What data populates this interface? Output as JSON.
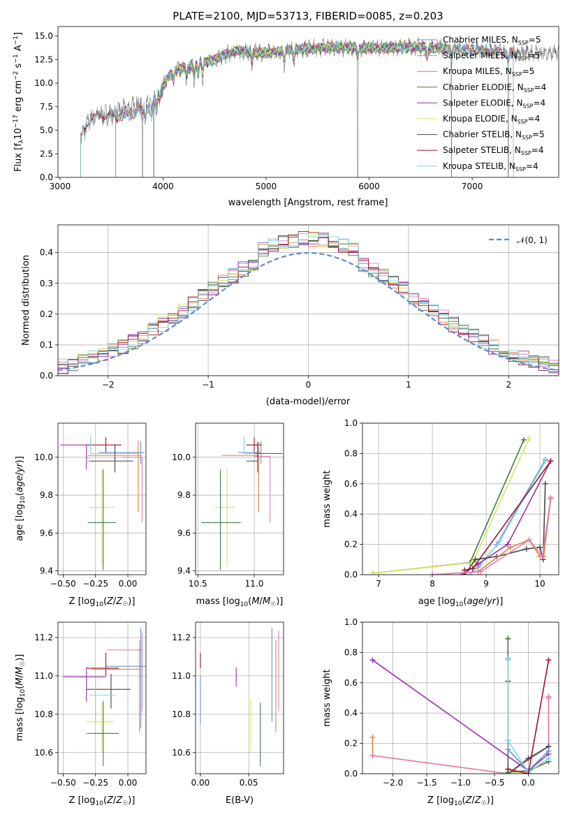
{
  "colors": {
    "Chabrier MILES": "#6a8fd6",
    "Salpeter MILES": "#e07fb0",
    "Kroupa MILES": "#e0803a",
    "Chabrier ELODIE": "#3f7a4a",
    "Salpeter ELODIE": "#9a2fae",
    "Kroupa ELODIE": "#d9e65a",
    "Chabrier STELIB": "#444444",
    "Salpeter STELIB": "#a0102a",
    "Kroupa STELIB": "#7fd8d8",
    "normal": "#5b8ad6",
    "grid": "#b0b0b0"
  },
  "chart_data": [
    {
      "id": "spectrum",
      "type": "line",
      "title": "PLATE=2100, MJD=53713, FIBERID=0085, z=0.203",
      "xlabel": "wavelength [Angstrom, rest frame]",
      "ylabel_parts": [
        "Flux [f",
        "λ",
        "10",
        "−17",
        " erg cm",
        "−2",
        " s",
        "−1",
        " A",
        "−1",
        "]"
      ],
      "xlim": [
        2980,
        7840
      ],
      "ylim": [
        0,
        16
      ],
      "xticks": [
        3000,
        4000,
        5000,
        6000,
        7000
      ],
      "yticks": [
        0.0,
        2.5,
        5.0,
        7.5,
        10.0,
        12.5,
        15.0
      ],
      "grid": false,
      "legend_position": "right",
      "legend": [
        {
          "name": "Chabrier MILES",
          "nssp": "5"
        },
        {
          "name": "Salpeter MILES",
          "nssp": "5"
        },
        {
          "name": "Kroupa MILES",
          "nssp": "5"
        },
        {
          "name": "Chabrier ELODIE",
          "nssp": "4"
        },
        {
          "name": "Salpeter ELODIE",
          "nssp": "4"
        },
        {
          "name": "Kroupa ELODIE",
          "nssp": "4"
        },
        {
          "name": "Chabrier STELIB",
          "nssp": "5"
        },
        {
          "name": "Salpeter STELIB",
          "nssp": "4"
        },
        {
          "name": "Kroupa STELIB",
          "nssp": "4"
        }
      ],
      "legend_nssp_label": "N",
      "legend_nssp_sub": "SSP",
      "model_start": {
        "Chabrier MILES": 3540,
        "Salpeter MILES": 3540,
        "Kroupa MILES": 3540,
        "Chabrier ELODIE": 3910,
        "Salpeter ELODIE": 3910,
        "Kroupa ELODIE": 3910,
        "Chabrier STELIB": 3200,
        "Salpeter STELIB": 3200,
        "Kroupa STELIB": 3200
      },
      "model_end": {
        "Chabrier MILES": 7400,
        "Salpeter MILES": 7400,
        "Kroupa MILES": 7400,
        "Chabrier ELODIE": 6800,
        "Salpeter ELODIE": 6800,
        "Kroupa ELODIE": 6800,
        "Chabrier STELIB": 7400,
        "Salpeter STELIB": 7400,
        "Kroupa STELIB": 7400
      },
      "continuum_wavelength": [
        3200,
        3300,
        3400,
        3500,
        3650,
        3800,
        3900,
        4000,
        4100,
        4300,
        4500,
        4700,
        5000,
        5300,
        5600,
        6000,
        6400,
        6800,
        7200,
        7400
      ],
      "continuum_flux": [
        4.2,
        6.3,
        6.6,
        6.7,
        7.2,
        7.8,
        8.2,
        9.8,
        11.3,
        11.9,
        12.5,
        13.4,
        13.2,
        13.6,
        13.8,
        13.7,
        13.8,
        13.7,
        13.4,
        13.2
      ],
      "absorption_lines": [
        3800,
        3830,
        3889,
        3934,
        3969,
        4102,
        4227,
        4304,
        4340,
        4384,
        4861,
        5175,
        5270,
        5890,
        6563,
        6800,
        7350
      ],
      "series_order": [
        "Salpeter STELIB",
        "Kroupa MILES",
        "Chabrier MILES",
        "Salpeter ELODIE",
        "Kroupa ELODIE",
        "Chabrier ELODIE",
        "Kroupa STELIB"
      ]
    },
    {
      "id": "residuals",
      "type": "line",
      "xlabel": "(data-model)/error",
      "ylabel": "Normed distribution",
      "xlim": [
        -2.5,
        2.5
      ],
      "ylim": [
        0,
        0.49
      ],
      "xticks": [
        -2,
        -1,
        0,
        1,
        2
      ],
      "yticks": [
        0.0,
        0.1,
        0.2,
        0.3,
        0.4
      ],
      "grid": true,
      "legend_position": "top-right",
      "normal_label": "𝒩(0, 1)",
      "bins_start": -2.5,
      "bin_width": 0.1,
      "n_bins": 50
    },
    {
      "id": "age-vs-Z",
      "type": "scatter",
      "xlabel": "Z [log10(Z/Z☉)]",
      "ylabel": "age [log10(age/yr)]",
      "xlim": [
        -0.54,
        0.14
      ],
      "ylim": [
        9.38,
        10.18
      ],
      "xticks": [
        -0.5,
        -0.25,
        0.0
      ],
      "yticks": [
        9.4,
        9.6,
        9.8,
        10.0
      ],
      "grid": true,
      "points": [
        {
          "model": "Salpeter ELODIE",
          "x": -0.32,
          "xerr": [
            0.2,
            0.0
          ],
          "y": 10.065,
          "yerr": [
            0.13,
            0.0
          ]
        },
        {
          "model": "Salpeter STELIB",
          "x": -0.17,
          "xerr": [
            0.15,
            0.12
          ],
          "y": 10.065,
          "yerr": [
            0.04,
            0.04
          ]
        },
        {
          "model": "Chabrier MILES",
          "x": 0.1,
          "xerr": [
            0.32,
            0.03
          ],
          "y": 10.025,
          "yerr": [
            0.06,
            0.06
          ]
        },
        {
          "model": "Kroupa STELIB",
          "x": -0.29,
          "xerr": [
            0.0,
            0.38
          ],
          "y": 10.02,
          "yerr": [
            0.0,
            0.09
          ]
        },
        {
          "model": "Kroupa MILES",
          "x": 0.08,
          "xerr": [
            0.39,
            0.02
          ],
          "y": 10.01,
          "yerr": [
            0.3,
            0.08
          ]
        },
        {
          "model": "Chabrier STELIB",
          "x": -0.1,
          "xerr": [
            0.2,
            0.14
          ],
          "y": 9.98,
          "yerr": [
            0.06,
            0.09
          ]
        },
        {
          "model": "Salpeter MILES",
          "x": 0.11,
          "xerr": [
            0.15,
            0.0
          ],
          "y": 10.0,
          "yerr": [
            0.34,
            0.0
          ]
        },
        {
          "model": "Kroupa ELODIE",
          "x": -0.2,
          "xerr": [
            0.1,
            0.1
          ],
          "y": 9.735,
          "yerr": [
            0.31,
            0.2
          ]
        },
        {
          "model": "Chabrier ELODIE",
          "x": -0.19,
          "xerr": [
            0.12,
            0.1
          ],
          "y": 9.655,
          "yerr": [
            0.25,
            0.28
          ]
        }
      ]
    },
    {
      "id": "age-vs-mass",
      "type": "scatter",
      "xlabel": "mass [log10(M/M☉)]",
      "ylabel": "",
      "xlim": [
        10.48,
        11.26
      ],
      "ylim": [
        9.38,
        10.18
      ],
      "xticks": [
        10.5,
        11.0
      ],
      "yticks": [
        9.4,
        9.6,
        9.8,
        10.0
      ],
      "grid": true,
      "points": [
        {
          "model": "Salpeter STELIB",
          "x": 11.0,
          "xerr": [
            0.07,
            0.07
          ],
          "y": 10.065,
          "yerr": [
            0.04,
            0.04
          ]
        },
        {
          "model": "Chabrier MILES",
          "x": 11.06,
          "xerr": [
            0.2,
            0.0
          ],
          "y": 10.025,
          "yerr": [
            0.06,
            0.06
          ]
        },
        {
          "model": "Kroupa STELIB",
          "x": 10.91,
          "xerr": [
            0.0,
            0.14
          ],
          "y": 10.02,
          "yerr": [
            0.0,
            0.09
          ]
        },
        {
          "model": "Salpeter ELODIE",
          "x": 11.0,
          "xerr": [
            0.0,
            0.25
          ],
          "y": 10.02,
          "yerr": [
            0.0,
            0.0
          ]
        },
        {
          "model": "Kroupa MILES",
          "x": 11.04,
          "xerr": [
            0.33,
            0.0
          ],
          "y": 10.01,
          "yerr": [
            0.3,
            0.07
          ]
        },
        {
          "model": "Salpeter MILES",
          "x": 11.14,
          "xerr": [
            0.14,
            0.0
          ],
          "y": 10.005,
          "yerr": [
            0.35,
            0.0
          ]
        },
        {
          "model": "Chabrier STELIB",
          "x": 11.03,
          "xerr": [
            0.1,
            0.0
          ],
          "y": 9.98,
          "yerr": [
            0.06,
            0.1
          ]
        },
        {
          "model": "Kroupa ELODIE",
          "x": 10.76,
          "xerr": [
            0.11,
            0.07
          ],
          "y": 9.735,
          "yerr": [
            0.31,
            0.2
          ]
        },
        {
          "model": "Chabrier ELODIE",
          "x": 10.7,
          "xerr": [
            0.17,
            0.18
          ],
          "y": 9.655,
          "yerr": [
            0.25,
            0.28
          ]
        }
      ]
    },
    {
      "id": "weight-vs-age",
      "type": "line",
      "xlabel": "age [log10(age/yr)]",
      "ylabel": "mass weight",
      "xlim": [
        6.7,
        10.35
      ],
      "ylim": [
        0,
        1
      ],
      "xticks": [
        7,
        8,
        9,
        10
      ],
      "yticks": [
        0.0,
        0.2,
        0.4,
        0.6,
        0.8,
        1.0
      ],
      "grid": true,
      "series": [
        {
          "model": "Chabrier ELODIE",
          "x": [
            6.9,
            8.7,
            9.7
          ],
          "y": [
            0.01,
            0.08,
            0.89
          ]
        },
        {
          "model": "Kroupa ELODIE",
          "x": [
            6.9,
            8.75,
            9.8
          ],
          "y": [
            0.01,
            0.08,
            0.9
          ]
        },
        {
          "model": "Chabrier MILES",
          "x": [
            8.7,
            8.85,
            9.2,
            10.1
          ],
          "y": [
            0.0,
            0.05,
            0.2,
            0.76
          ]
        },
        {
          "model": "Kroupa STELIB",
          "x": [
            8.7,
            8.9,
            9.25,
            10.1
          ],
          "y": [
            0.0,
            0.07,
            0.22,
            0.75
          ]
        },
        {
          "model": "Salpeter ELODIE",
          "x": [
            8.55,
            8.85,
            9.4,
            10.2
          ],
          "y": [
            0.0,
            0.07,
            0.2,
            0.75
          ]
        },
        {
          "model": "Salpeter STELIB",
          "x": [
            8.6,
            8.75,
            10.2
          ],
          "y": [
            0.03,
            0.04,
            0.75
          ]
        },
        {
          "model": "Chabrier STELIB",
          "x": [
            8.6,
            8.8,
            9.2,
            9.75,
            10.0,
            10.06,
            10.1
          ],
          "y": [
            0.0,
            0.1,
            0.12,
            0.17,
            0.18,
            0.1,
            0.6
          ]
        },
        {
          "model": "Kroupa MILES",
          "x": [
            8.0,
            8.85,
            9.45,
            9.8,
            10.0,
            10.07,
            10.2
          ],
          "y": [
            0.0,
            0.02,
            0.18,
            0.23,
            0.12,
            0.12,
            0.5
          ]
        },
        {
          "model": "Salpeter MILES",
          "x": [
            8.0,
            8.9,
            9.8,
            10.05,
            10.2
          ],
          "y": [
            0.0,
            0.02,
            0.23,
            0.12,
            0.51
          ]
        }
      ]
    },
    {
      "id": "mass-vs-Z",
      "type": "scatter",
      "xlabel": "Z [log10(Z/Z☉)]",
      "ylabel": "mass [log10(M/M☉)]",
      "xlim": [
        -0.54,
        0.14
      ],
      "ylim": [
        10.49,
        11.28
      ],
      "xticks": [
        -0.5,
        -0.25,
        0.0
      ],
      "yticks": [
        10.6,
        10.8,
        11.0,
        11.2
      ],
      "grid": true,
      "points": [
        {
          "model": "Salpeter MILES",
          "x": 0.11,
          "xerr": [
            0.27,
            0.0
          ],
          "y": 11.135,
          "yerr": [
            0.32,
            0.09
          ]
        },
        {
          "model": "Chabrier MILES",
          "x": 0.1,
          "xerr": [
            0.27,
            0.04
          ],
          "y": 11.05,
          "yerr": [
            0.32,
            0.2
          ]
        },
        {
          "model": "Salpeter STELIB",
          "x": -0.17,
          "xerr": [
            0.15,
            0.1
          ],
          "y": 11.04,
          "yerr": [
            0.04,
            0.08
          ]
        },
        {
          "model": "Kroupa MILES",
          "x": 0.09,
          "xerr": [
            0.37,
            0.0
          ],
          "y": 11.035,
          "yerr": [
            0.33,
            0.15
          ]
        },
        {
          "model": "Salpeter ELODIE",
          "x": -0.32,
          "xerr": [
            0.18,
            0.15
          ],
          "y": 10.995,
          "yerr": [
            0.13,
            0.05
          ]
        },
        {
          "model": "Chabrier STELIB",
          "x": -0.13,
          "xerr": [
            0.19,
            0.15
          ],
          "y": 10.93,
          "yerr": [
            0.1,
            0.08
          ]
        },
        {
          "model": "Kroupa STELIB",
          "x": -0.25,
          "xerr": [
            0.05,
            0.16
          ],
          "y": 10.9,
          "yerr": [
            0.15,
            0.09
          ]
        },
        {
          "model": "Kroupa ELODIE",
          "x": -0.2,
          "xerr": [
            0.12,
            0.09
          ],
          "y": 10.76,
          "yerr": [
            0.15,
            0.1
          ]
        },
        {
          "model": "Chabrier ELODIE",
          "x": -0.19,
          "xerr": [
            0.13,
            0.12
          ],
          "y": 10.7,
          "yerr": [
            0.17,
            0.17
          ]
        }
      ]
    },
    {
      "id": "mass-vs-EBV",
      "type": "scatter",
      "xlabel": "E(B-V)",
      "ylabel": "",
      "xlim": [
        -0.005,
        0.086
      ],
      "ylim": [
        10.49,
        11.28
      ],
      "xticks": [
        0.0,
        0.05
      ],
      "yticks": [
        10.6,
        10.8,
        11.0,
        11.2
      ],
      "grid": true,
      "points": [
        {
          "model": "Salpeter STELIB",
          "x": 0.0,
          "y": 11.04,
          "yerr": [
            0.0,
            0.08
          ]
        },
        {
          "model": "Chabrier MILES",
          "x": 0.0,
          "y": 10.9,
          "yerr": [
            0.15,
            0.1
          ]
        },
        {
          "model": "Salpeter ELODIE",
          "x": 0.037,
          "y": 10.995,
          "yerr": [
            0.05,
            0.05
          ]
        },
        {
          "model": "Kroupa ELODIE",
          "x": 0.052,
          "y": 10.76,
          "yerr": [
            0.15,
            0.12
          ]
        },
        {
          "model": "Chabrier ELODIE",
          "x": 0.062,
          "y": 10.7,
          "yerr": [
            0.17,
            0.16
          ]
        },
        {
          "model": "Chabrier MILES",
          "x": 0.074,
          "y": 11.05,
          "yerr": [
            0.29,
            0.2
          ]
        },
        {
          "model": "Kroupa MILES",
          "x": 0.078,
          "y": 11.035,
          "yerr": [
            0.33,
            0.15
          ]
        },
        {
          "model": "Salpeter MILES",
          "x": 0.081,
          "y": 11.135,
          "yerr": [
            0.32,
            0.1
          ]
        }
      ]
    },
    {
      "id": "weight-vs-Z",
      "type": "line",
      "xlabel": "Z [log10(Z/Z☉)]",
      "ylabel": "mass weight",
      "xlim": [
        -2.45,
        0.45
      ],
      "ylim": [
        0,
        1
      ],
      "xticks": [
        -2.0,
        -1.5,
        -1.0,
        -0.5,
        0.0
      ],
      "yticks": [
        0.0,
        0.2,
        0.4,
        0.6,
        0.8,
        1.0
      ],
      "grid": true,
      "series": [
        {
          "model": "Salpeter ELODIE",
          "x": [
            -2.3,
            0.0,
            0.3
          ],
          "y": [
            0.75,
            0.02,
            0.13
          ]
        },
        {
          "model": "Kroupa MILES",
          "x": [
            -2.3,
            -2.3,
            -0.3,
            0.3,
            0.3
          ],
          "y": [
            0.24,
            0.12,
            0.0,
            0.18,
            0.5
          ]
        },
        {
          "model": "Salpeter MILES",
          "x": [
            -2.3,
            -0.3,
            0.3,
            0.3
          ],
          "y": [
            0.12,
            0.0,
            0.18,
            0.51
          ]
        },
        {
          "model": "Chabrier STELIB",
          "x": [
            -0.3,
            -0.3,
            0.0,
            0.3
          ],
          "y": [
            0.61,
            0.0,
            0.1,
            0.18
          ]
        },
        {
          "model": "Kroupa ELODIE",
          "x": [
            -0.3,
            -0.3,
            0.0,
            0.3
          ],
          "y": [
            0.9,
            0.01,
            0.01,
            0.08
          ]
        },
        {
          "model": "Chabrier ELODIE",
          "x": [
            -0.3,
            -0.3,
            0.0,
            0.3
          ],
          "y": [
            0.89,
            0.01,
            0.02,
            0.08
          ]
        },
        {
          "model": "Chabrier MILES",
          "x": [
            -0.3,
            -0.3,
            0.0,
            0.3
          ],
          "y": [
            0.76,
            0.16,
            0.02,
            0.15
          ]
        },
        {
          "model": "Kroupa STELIB",
          "x": [
            -0.3,
            -0.3,
            0.0,
            0.3
          ],
          "y": [
            0.75,
            0.22,
            0.01,
            0.1
          ]
        },
        {
          "model": "Salpeter STELIB",
          "x": [
            -0.3,
            0.0,
            0.3
          ],
          "y": [
            0.03,
            0.0,
            0.75
          ]
        }
      ]
    }
  ]
}
